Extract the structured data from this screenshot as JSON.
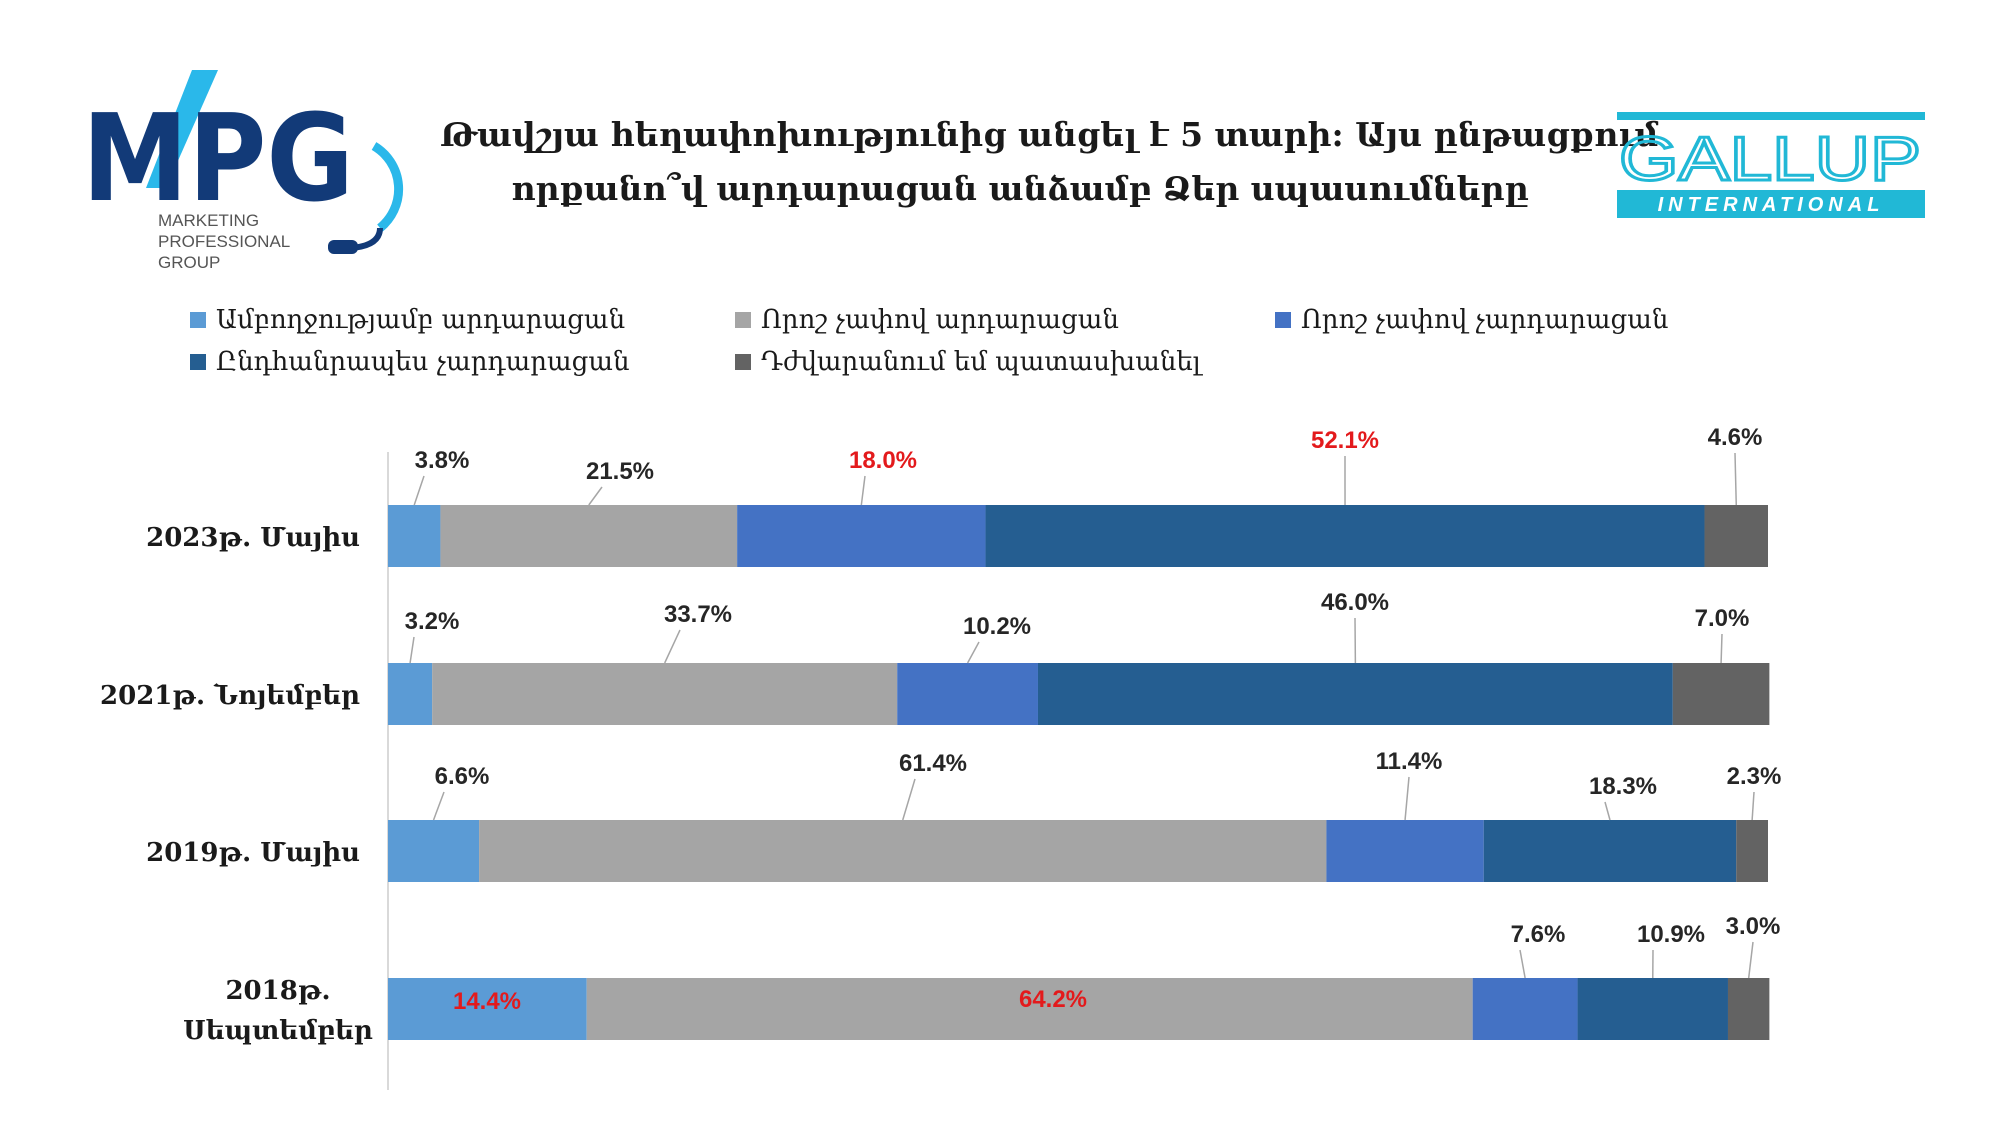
{
  "title_lines": [
    "Թավշյա հեղափոխությունից անցել է 5 տարի: Այս ընթացքում",
    "որքանո՞վ արդարացան անձամբ Ձեր սպասումները"
  ],
  "logos": {
    "mpg": {
      "letters": "MPG",
      "line1": "MARKETING",
      "line2": "PROFESSIONAL",
      "line3": "GROUP"
    },
    "gallup": {
      "name": "GALLUP",
      "sub": "INTERNATIONAL"
    }
  },
  "colors": {
    "fully_met": "#5b9bd5",
    "partially_met": "#a5a5a5",
    "partially_not_met": "#4472c4",
    "not_met": "#255e91",
    "hard_to_answer": "#636363",
    "highlight_label": "#e31a1c",
    "normal_label": "#262626"
  },
  "chart_data": {
    "type": "bar",
    "orientation": "horizontal",
    "stacked": true,
    "xlim": [
      0,
      100
    ],
    "categories": [
      "2023թ. Մայիս",
      "2021թ. Նոյեմբեր",
      "2019թ. Մայիս",
      "2018թ. Սեպտեմբեր"
    ],
    "series": [
      {
        "name": "Ամբողջությամբ արդարացան",
        "values": [
          3.8,
          3.2,
          6.6,
          14.4
        ],
        "labels": [
          "3.8%",
          "3.2%",
          "6.6%",
          "14.4%"
        ]
      },
      {
        "name": "Որոշ չափով արդարացան",
        "values": [
          21.5,
          33.7,
          61.4,
          64.2
        ],
        "labels": [
          "21.5%",
          "33.7%",
          "61.4%",
          "64.2%"
        ]
      },
      {
        "name": "Որոշ չափով չարդարացան",
        "values": [
          18.0,
          10.2,
          11.4,
          7.6
        ],
        "labels": [
          "18.0%",
          "10.2%",
          "11.4%",
          "7.6%"
        ]
      },
      {
        "name": "Ընդհանրապես չարդարացան",
        "values": [
          52.1,
          46.0,
          18.3,
          10.9
        ],
        "labels": [
          "52.1%",
          "46.0%",
          "18.3%",
          "10.9%"
        ]
      },
      {
        "name": "Դժվարանում եմ պատասխանել",
        "values": [
          4.6,
          7.0,
          2.3,
          3.0
        ],
        "labels": [
          "4.6%",
          "7.0%",
          "2.3%",
          "3.0%"
        ]
      }
    ],
    "highlighted_labels": [
      [
        0,
        2
      ],
      [
        0,
        3
      ],
      [
        3,
        0
      ],
      [
        3,
        1
      ]
    ],
    "inside_labels": [
      [
        3,
        0
      ],
      [
        3,
        1
      ]
    ],
    "legend_position": "top"
  }
}
